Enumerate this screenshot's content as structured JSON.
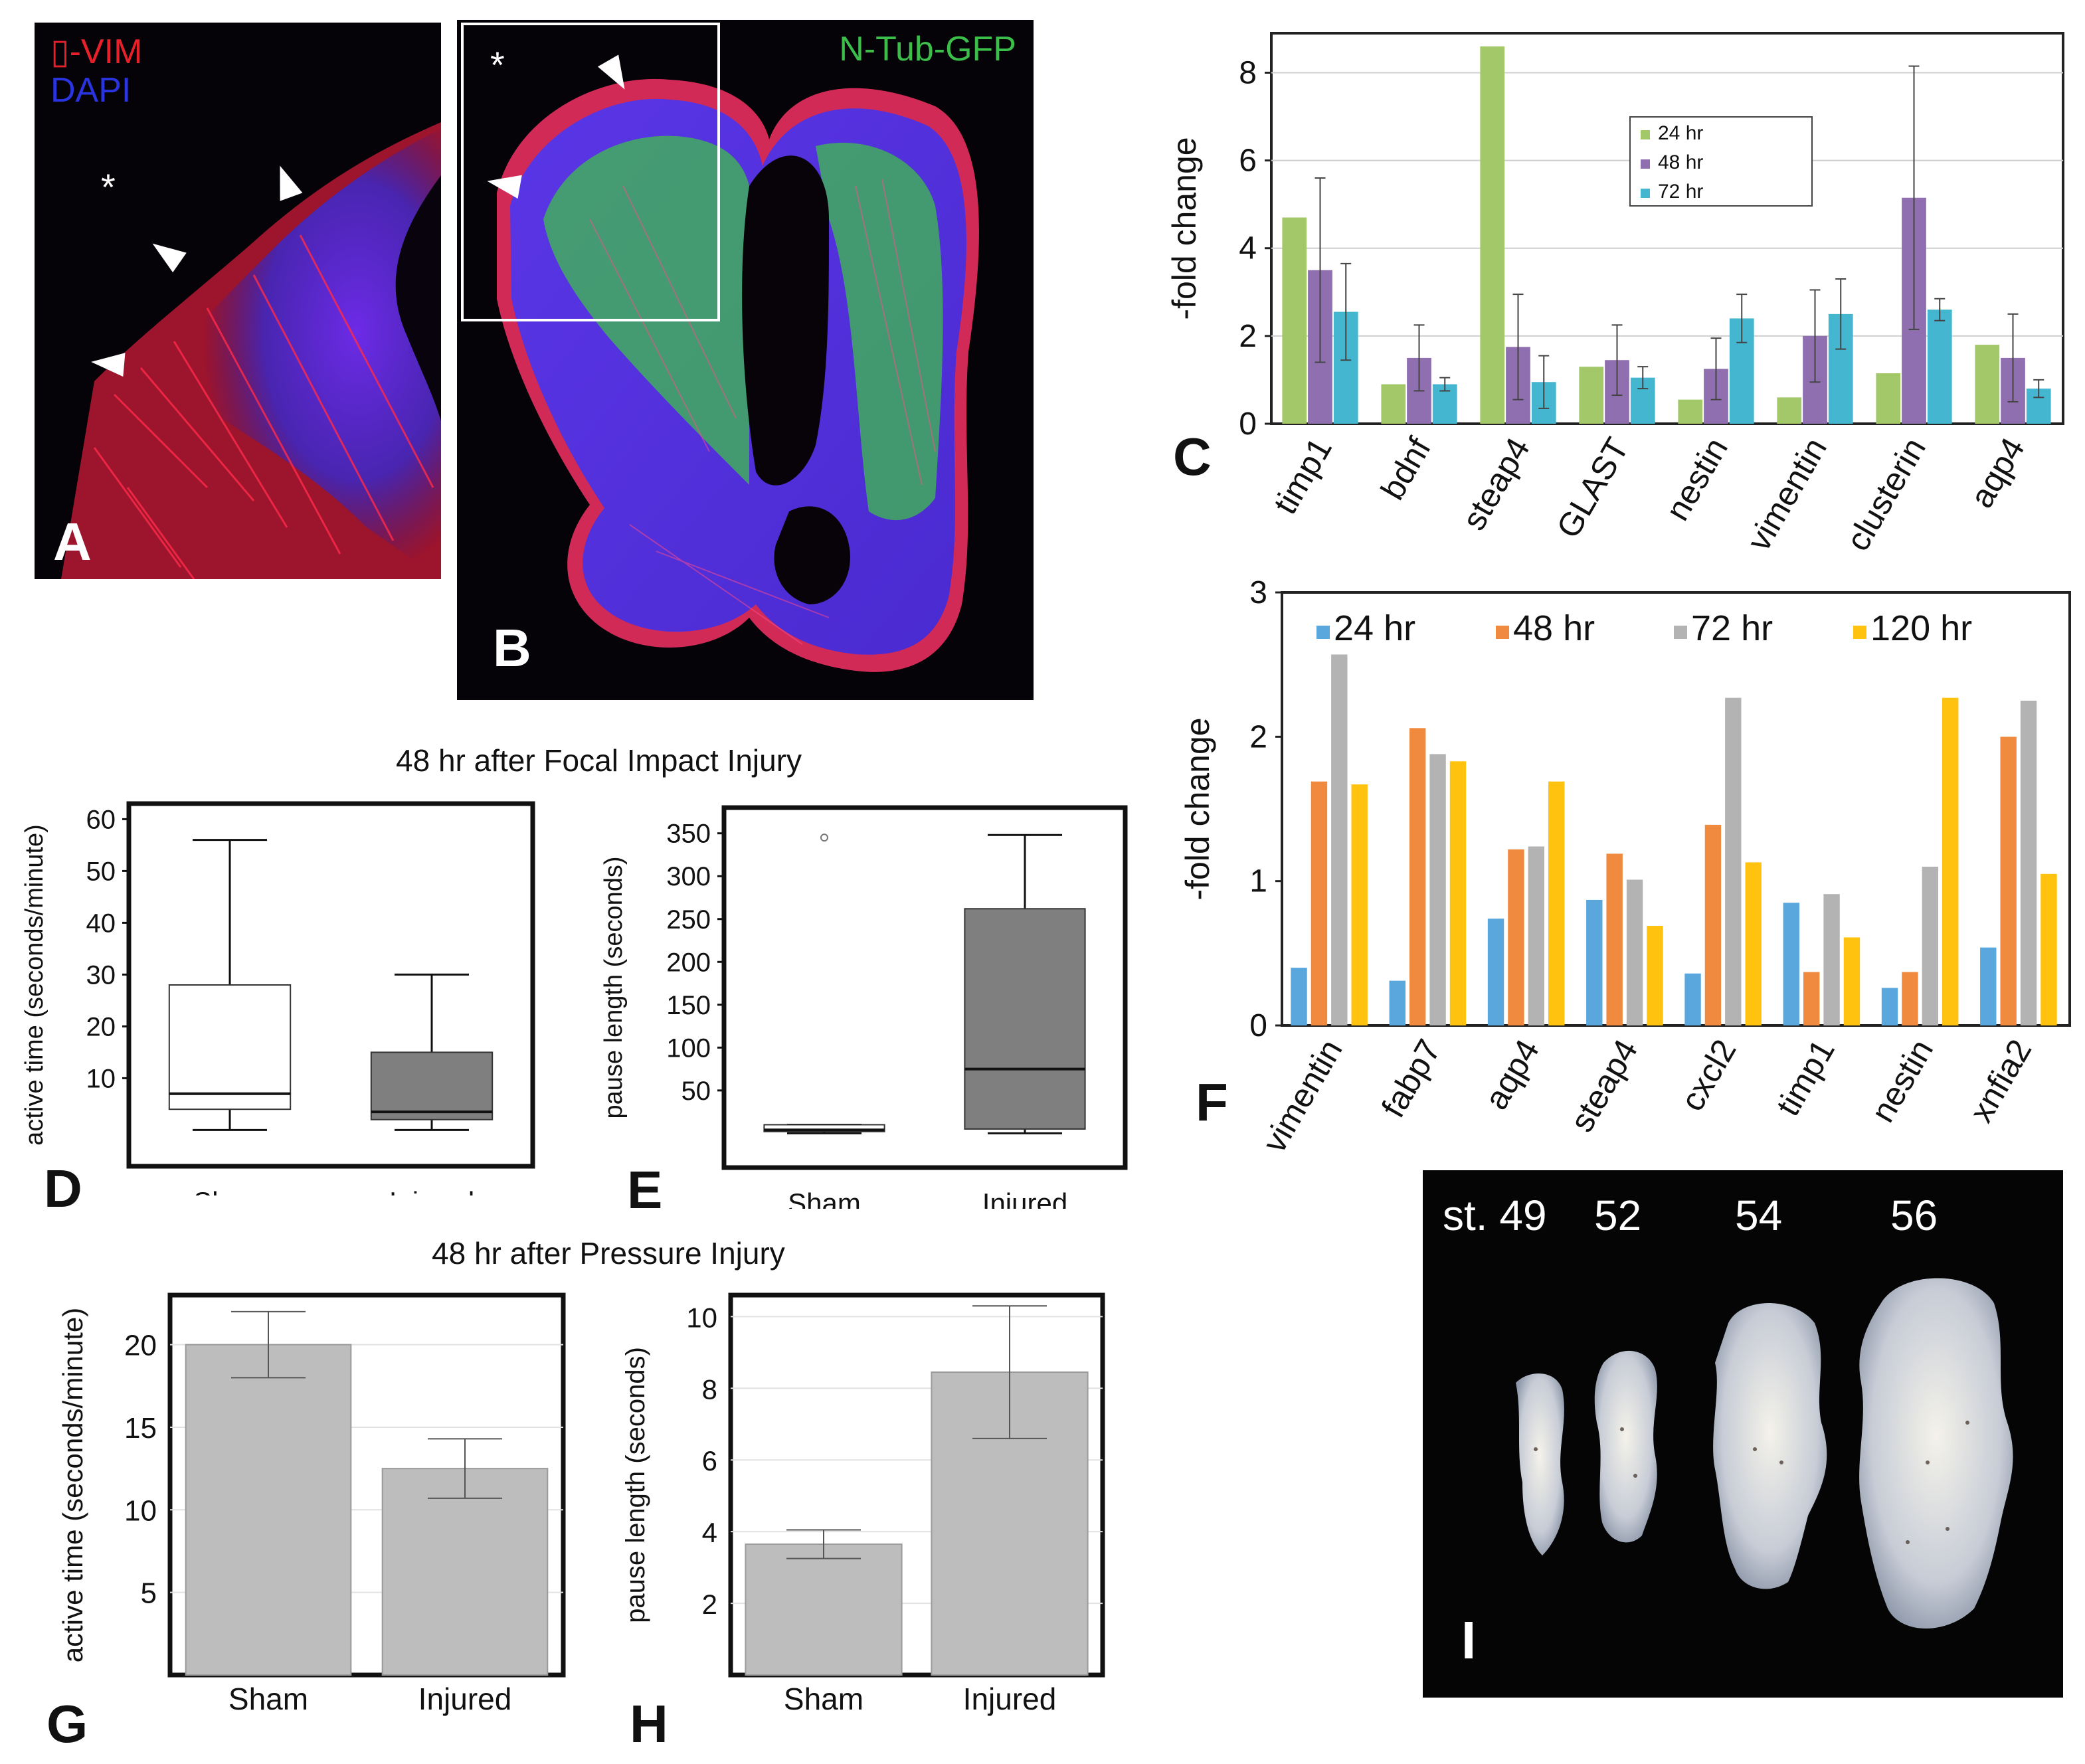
{
  "panels": {
    "A": {
      "letter": "A",
      "label_line1": "▯-VIM",
      "label_line2": "DAPI",
      "asterisk": "*"
    },
    "B": {
      "letter": "B",
      "label": "N-Tub-GFP",
      "asterisk": "*"
    },
    "C": {
      "letter": "C"
    },
    "D": {
      "letter": "D"
    },
    "E": {
      "letter": "E"
    },
    "F": {
      "letter": "F"
    },
    "G": {
      "letter": "G"
    },
    "H": {
      "letter": "H"
    },
    "I": {
      "letter": "I",
      "stages": [
        "st. 49",
        "52",
        "54",
        "56"
      ]
    }
  },
  "captions": {
    "focal": "48 hr after Focal Impact Injury",
    "pressure": "48 hr after Pressure Injury"
  },
  "colors": {
    "vim_red": "#e8202a",
    "dapi_blue": "#2a34e0",
    "gfp_green": "#3bbf4a",
    "c_24": "#a3c86a",
    "c_48": "#8f6fb0",
    "c_72": "#45b6d0",
    "f_24": "#5aa7dd",
    "f_48": "#f08a3e",
    "f_72": "#b3b3b3",
    "f_120": "#ffc20e"
  },
  "chart_data": [
    {
      "id": "C",
      "type": "bar",
      "title": "",
      "ylabel": "-fold change",
      "categories": [
        "timp1",
        "bdnf",
        "steap4",
        "GLAST",
        "nestin",
        "vimentin",
        "clusterin",
        "aqp4"
      ],
      "ylim": [
        0,
        8.9
      ],
      "yticks": [
        0,
        2,
        4,
        6,
        8
      ],
      "grid": true,
      "legend": "inside-top-center",
      "series": [
        {
          "name": "24 hr",
          "values": [
            4.7,
            0.9,
            8.6,
            1.3,
            0.55,
            0.6,
            1.15,
            1.8
          ],
          "err": [
            0,
            0,
            0,
            0,
            0,
            0,
            0,
            0
          ]
        },
        {
          "name": "48 hr",
          "values": [
            3.5,
            1.5,
            1.75,
            1.45,
            1.25,
            2.0,
            5.15,
            1.5
          ],
          "err": [
            2.1,
            0.75,
            1.2,
            0.8,
            0.7,
            1.05,
            3.0,
            1.0
          ]
        },
        {
          "name": "72 hr",
          "values": [
            2.55,
            0.9,
            0.95,
            1.05,
            2.4,
            2.5,
            2.6,
            0.8
          ],
          "err": [
            1.1,
            0.15,
            0.6,
            0.25,
            0.55,
            0.8,
            0.25,
            0.2
          ]
        }
      ]
    },
    {
      "id": "F",
      "type": "bar",
      "title": "",
      "ylabel": "-fold change",
      "categories": [
        "vimentin",
        "fabp7",
        "aqp4",
        "steap4",
        "cxcl2",
        "timp1",
        "nestin",
        "xnfia2"
      ],
      "ylim": [
        0,
        3
      ],
      "yticks": [
        0,
        1,
        2,
        3
      ],
      "grid": false,
      "legend": "top",
      "series": [
        {
          "name": "24 hr",
          "values": [
            0.4,
            0.31,
            0.74,
            0.87,
            0.36,
            0.85,
            0.26,
            0.54
          ]
        },
        {
          "name": "48 hr",
          "values": [
            1.69,
            2.06,
            1.22,
            1.19,
            1.39,
            0.37,
            0.37,
            2.0
          ]
        },
        {
          "name": "72 hr",
          "values": [
            2.57,
            1.88,
            1.24,
            1.01,
            2.27,
            0.91,
            1.1,
            2.25
          ]
        },
        {
          "name": "120 hr",
          "values": [
            1.67,
            1.83,
            1.69,
            0.69,
            1.13,
            0.61,
            2.27,
            1.05
          ]
        }
      ]
    },
    {
      "id": "D",
      "type": "box",
      "ylabel": "active time (seconds/minute)",
      "categories": [
        "Sham",
        "Injured"
      ],
      "ylim": [
        -7,
        63
      ],
      "yticks": [
        10,
        20,
        30,
        40,
        50,
        60
      ],
      "boxes": [
        {
          "name": "Sham",
          "whisker_low": 0,
          "q1": 4,
          "median": 7,
          "q3": 28,
          "whisker_high": 56,
          "fill": "#ffffff"
        },
        {
          "name": "Injured",
          "whisker_low": 0,
          "q1": 2,
          "median": 3.5,
          "q3": 15,
          "whisker_high": 30,
          "fill": "#7f7f7f"
        }
      ]
    },
    {
      "id": "E",
      "type": "box",
      "ylabel": "pause length (seconds)",
      "categories": [
        "Sham",
        "Injured"
      ],
      "ylim": [
        -40,
        380
      ],
      "yticks": [
        50,
        100,
        150,
        200,
        250,
        300,
        350
      ],
      "boxes": [
        {
          "name": "Sham",
          "whisker_low": 0,
          "q1": 2,
          "median": 4,
          "q3": 10,
          "whisker_high": 10,
          "outliers": [
            345
          ],
          "fill": "#ffffff"
        },
        {
          "name": "Injured",
          "whisker_low": 0,
          "q1": 5,
          "median": 75,
          "q3": 262,
          "whisker_high": 348,
          "fill": "#7f7f7f"
        }
      ]
    },
    {
      "id": "G",
      "type": "bar",
      "ylabel": "active time (seconds/minute)",
      "categories": [
        "Sham",
        "Injured"
      ],
      "ylim": [
        0,
        23
      ],
      "yticks": [
        5,
        10,
        15,
        20
      ],
      "values": [
        20,
        12.5
      ],
      "err": [
        2,
        1.8
      ]
    },
    {
      "id": "H",
      "type": "bar",
      "ylabel": "pause length (seconds)",
      "categories": [
        "Sham",
        "Injured"
      ],
      "ylim": [
        0,
        10.6
      ],
      "yticks": [
        2,
        4,
        6,
        8,
        10
      ],
      "values": [
        3.65,
        8.45
      ],
      "err": [
        0.4,
        1.85
      ]
    }
  ]
}
